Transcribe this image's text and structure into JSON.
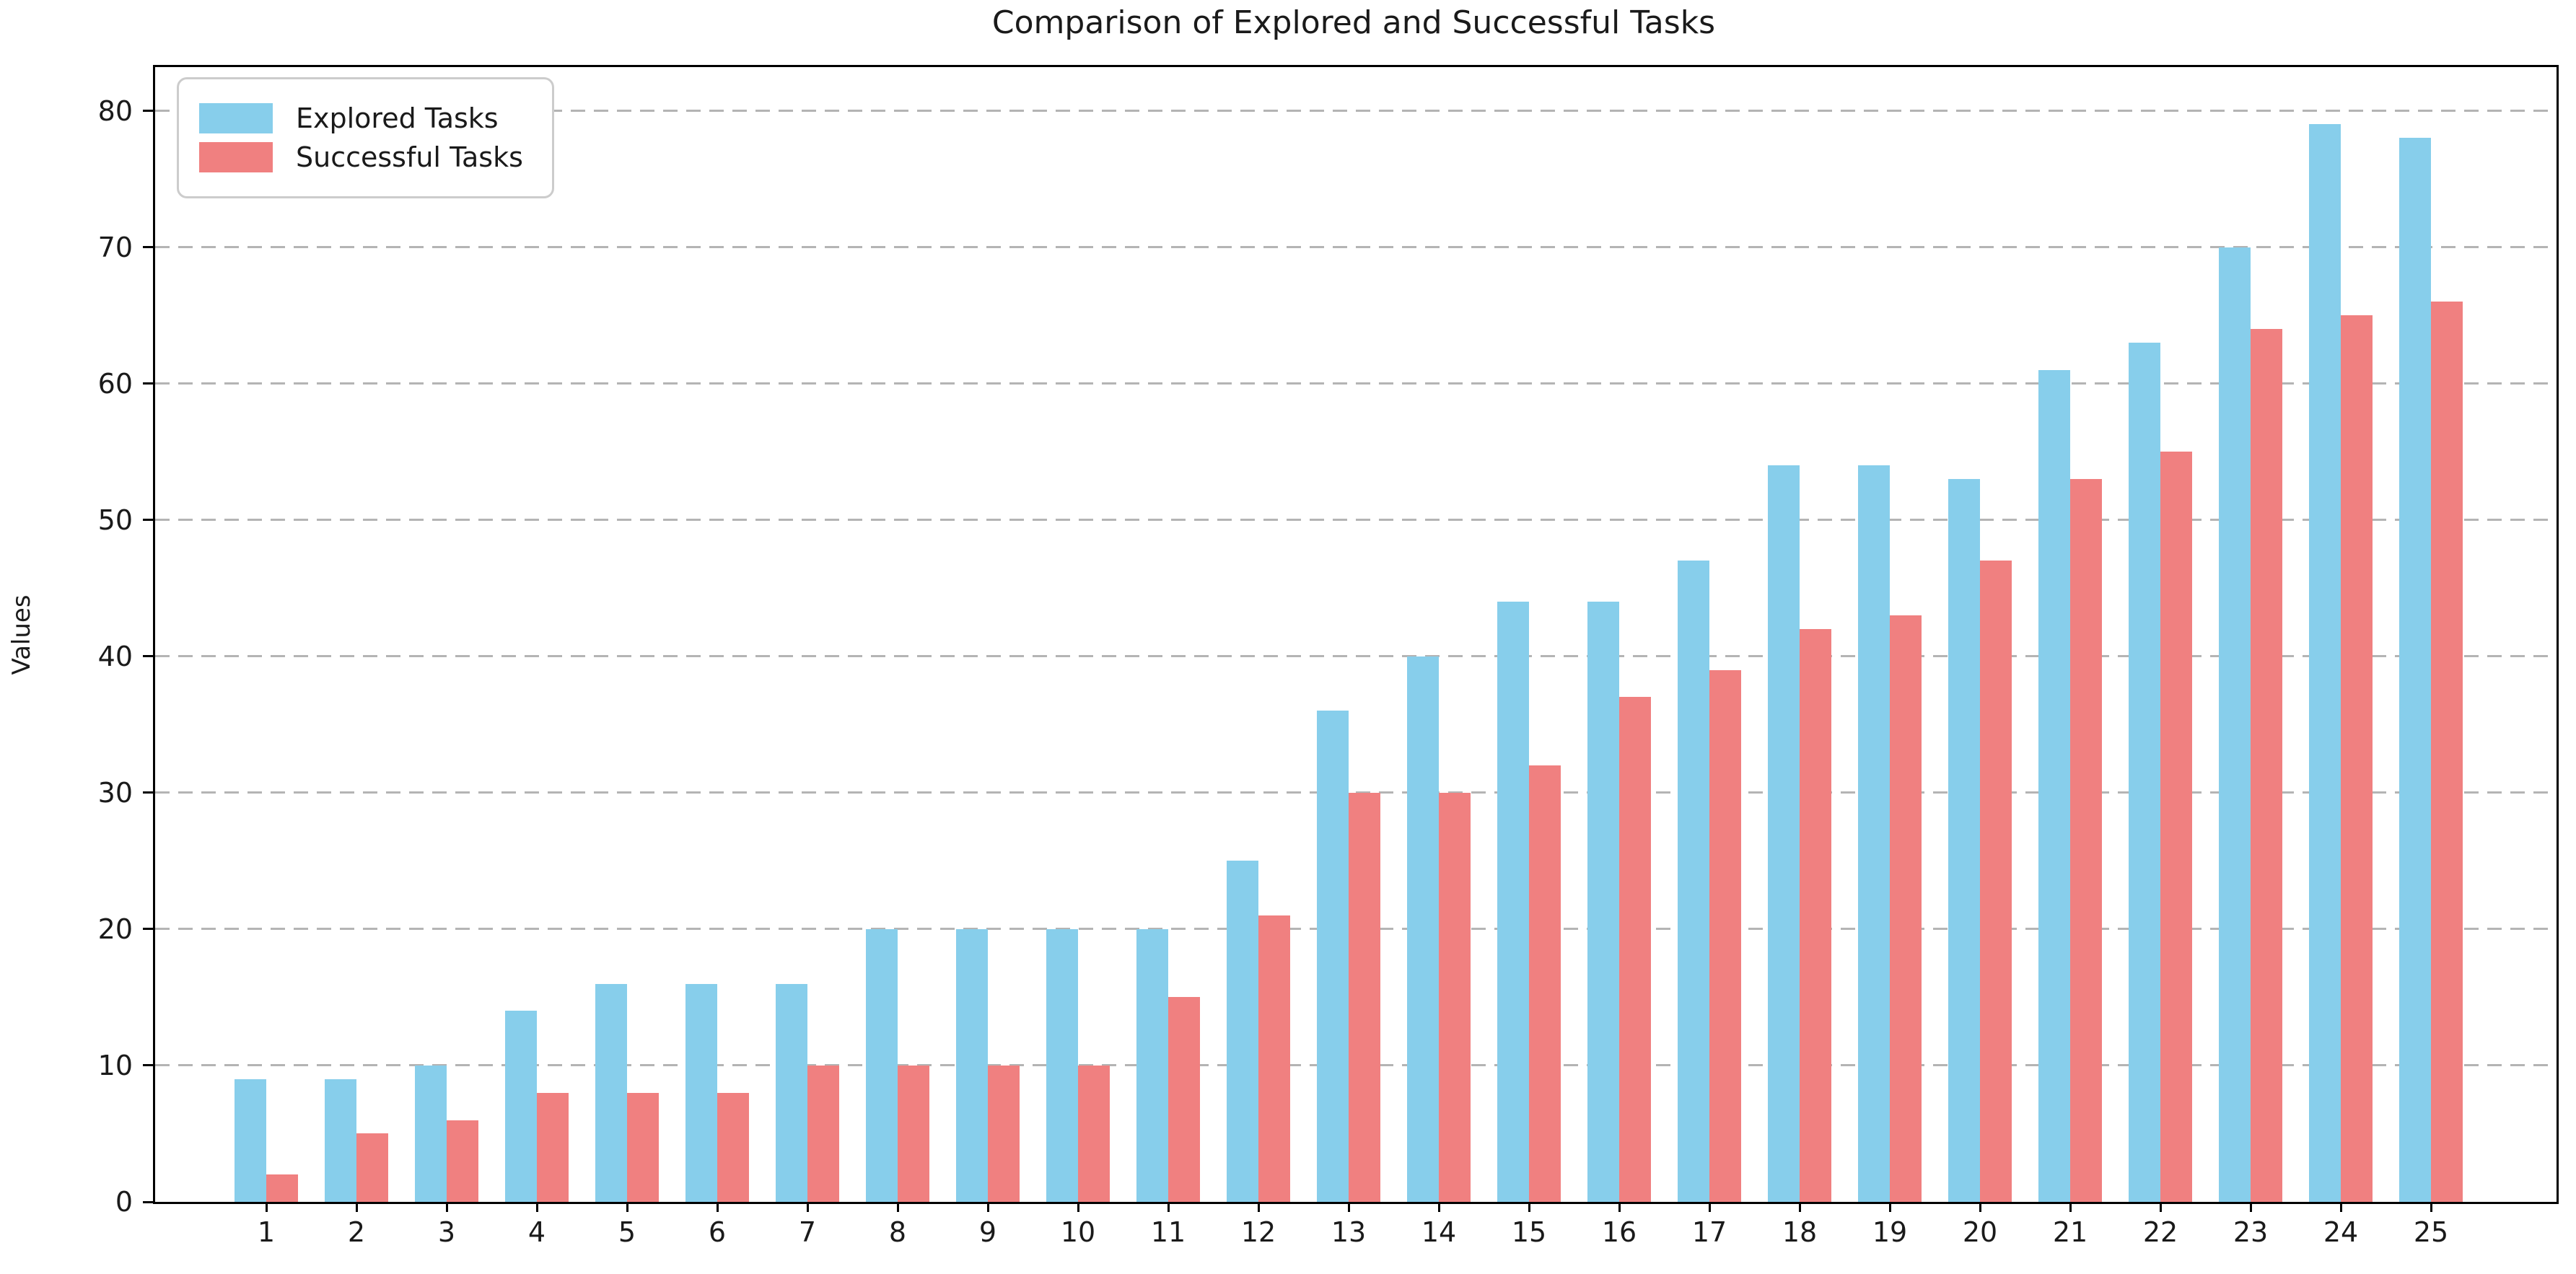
{
  "chart_data": {
    "type": "bar",
    "title": "Comparison of Explored and Successful Tasks",
    "xlabel": "",
    "ylabel": "Values",
    "categories": [
      1,
      2,
      3,
      4,
      5,
      6,
      7,
      8,
      9,
      10,
      11,
      12,
      13,
      14,
      15,
      16,
      17,
      18,
      19,
      20,
      21,
      22,
      23,
      24,
      25
    ],
    "series": [
      {
        "name": "Explored Tasks",
        "color": "#87CEEB",
        "values": [
          9,
          9,
          10,
          14,
          16,
          16,
          16,
          20,
          20,
          20,
          20,
          25,
          36,
          40,
          44,
          44,
          47,
          54,
          54,
          53,
          61,
          63,
          70,
          79,
          78
        ]
      },
      {
        "name": "Successful Tasks",
        "color": "#F08080",
        "values": [
          2,
          5,
          6,
          8,
          8,
          8,
          10,
          10,
          10,
          10,
          15,
          21,
          30,
          30,
          32,
          37,
          39,
          42,
          43,
          47,
          53,
          55,
          64,
          65,
          66
        ]
      }
    ],
    "ylim": [
      0,
      83.2
    ],
    "yticks": [
      0,
      10,
      20,
      30,
      40,
      50,
      60,
      70,
      80
    ],
    "grid": {
      "axis": "y",
      "style": "dashed",
      "color": "#b4b4b4",
      "gridline_values": [
        10,
        20,
        30,
        40,
        50,
        60,
        70,
        80
      ]
    },
    "legend": {
      "position": "upper-left"
    }
  }
}
